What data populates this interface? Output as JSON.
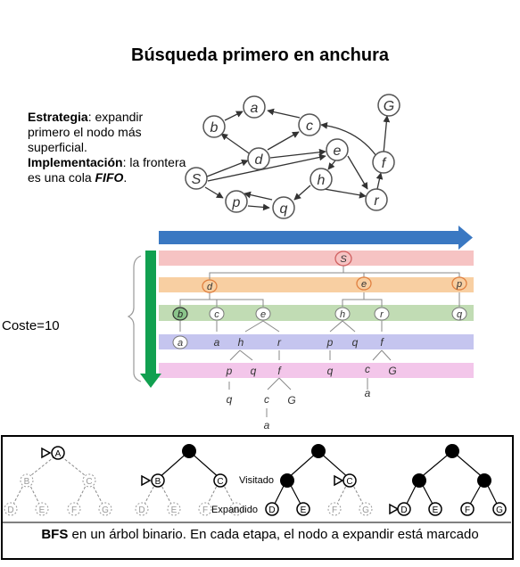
{
  "title": "Búsqueda primero en anchura",
  "strategy": {
    "strategy_label": "Estrategia",
    "strategy_text": ": expandir primero el nodo más superficial.",
    "impl_label": "Implementación",
    "impl_text": ": la frontera es una cola ",
    "fifo": "FIFO",
    "period": "."
  },
  "coste_label": "Coste=10",
  "graph": {
    "nodes": [
      {
        "id": "S",
        "label": "S"
      },
      {
        "id": "a",
        "label": "a"
      },
      {
        "id": "b",
        "label": "b"
      },
      {
        "id": "c",
        "label": "c"
      },
      {
        "id": "d",
        "label": "d"
      },
      {
        "id": "e",
        "label": "e"
      },
      {
        "id": "f",
        "label": "f"
      },
      {
        "id": "G",
        "label": "G"
      },
      {
        "id": "h",
        "label": "h"
      },
      {
        "id": "p",
        "label": "p"
      },
      {
        "id": "q",
        "label": "q"
      },
      {
        "id": "r",
        "label": "r"
      }
    ]
  },
  "tree": {
    "level0": [
      "S"
    ],
    "level1": [
      "d",
      "e",
      "p"
    ],
    "level2": [
      "b",
      "c",
      "e",
      "h",
      "r",
      "q"
    ],
    "level3": [
      "a",
      "a",
      "h",
      "r",
      "p",
      "q",
      "f"
    ],
    "level4": [
      "p",
      "q",
      "f",
      "q",
      "c",
      "G"
    ],
    "level5": [
      "q",
      "c",
      "G",
      "a"
    ],
    "level6": [
      "a"
    ]
  },
  "bfs": {
    "labels": [
      "A",
      "B",
      "C",
      "D",
      "E",
      "F",
      "G"
    ],
    "visitado": "Visitado",
    "expandido": "Expandido",
    "caption_bold": "BFS",
    "caption_rest": " en un árbol binario. En cada etapa, el nodo a expandir está marcado"
  },
  "colors": {
    "arrow_blue": "#3a78c2",
    "arrow_green": "#11a050",
    "band_red": "#f6c3c3",
    "band_orange": "#f8cfa2",
    "band_green": "#c1dcb4",
    "band_blue": "#c5c5ef",
    "band_pink": "#f3c6ea",
    "node_orange": "#e8a060"
  }
}
